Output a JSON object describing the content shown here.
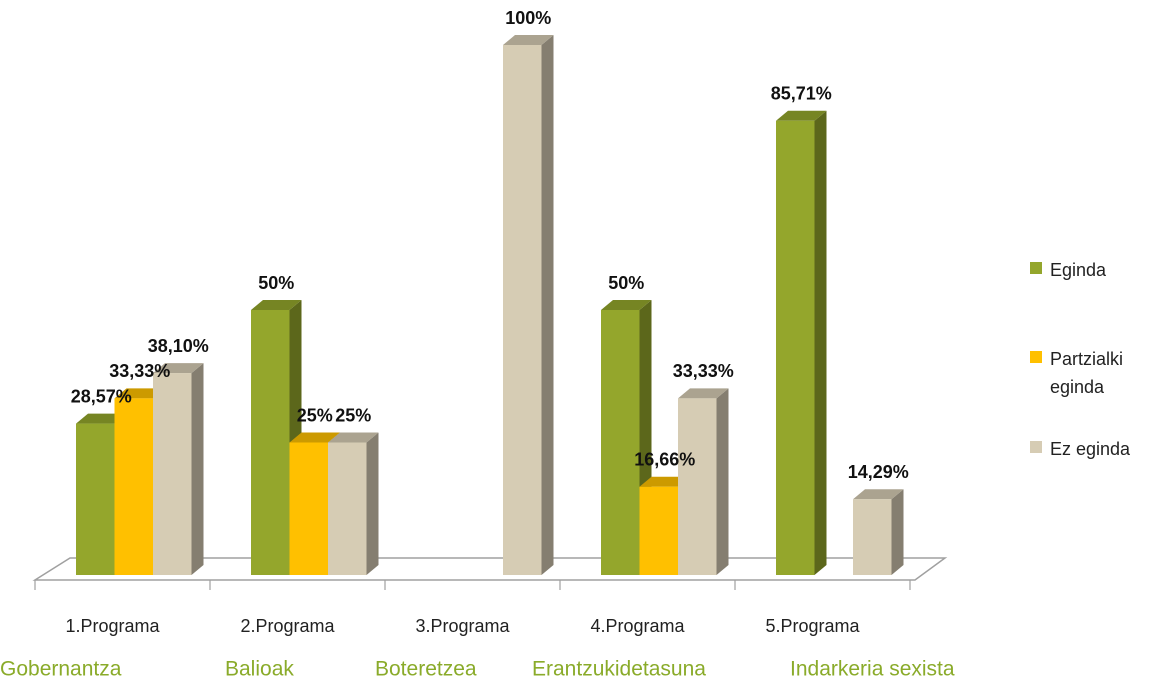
{
  "chart_data": {
    "type": "bar3d",
    "categories": [
      "1.Programa",
      "2.Programa",
      "3.Programa",
      "4.Programa",
      "5.Programa"
    ],
    "subcategories": [
      "Gobernantza",
      "Balioak",
      "Boteretzea",
      "Erantzukidetasuna",
      "Indarkeria sexista"
    ],
    "ylim": [
      0,
      100
    ],
    "series": [
      {
        "name": "Eginda",
        "color": "#94a62c",
        "values": [
          28.57,
          50,
          null,
          50,
          85.71
        ],
        "value_labels": [
          "28,57%",
          "50%",
          null,
          "50%",
          "85,71%"
        ]
      },
      {
        "name": "Partzialki eginda",
        "color": "#ffc000",
        "values": [
          33.33,
          25,
          null,
          16.66,
          null
        ],
        "value_labels": [
          "33,33%",
          "25%",
          null,
          "16,66%",
          null
        ]
      },
      {
        "name": "Ez eginda",
        "color": "#d6ccb4",
        "values": [
          38.1,
          25,
          100,
          33.33,
          14.29
        ],
        "value_labels": [
          "38,10%",
          "25%",
          "100%",
          "33,33%",
          "14,29%"
        ]
      }
    ]
  }
}
